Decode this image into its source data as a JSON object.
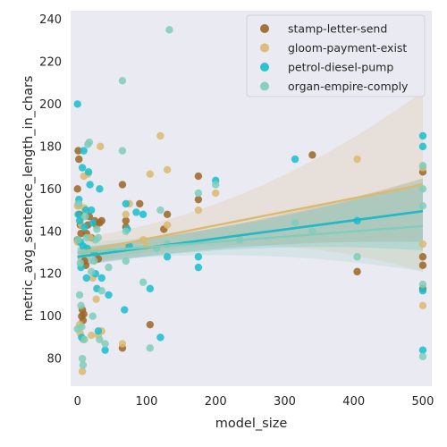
{
  "chart_data": {
    "type": "scatter",
    "xlabel": "model_size",
    "ylabel": "metric_avg_sentence_length_in_chars",
    "xlim": [
      -10,
      513
    ],
    "ylim": [
      67,
      244
    ],
    "xticks": [
      0,
      100,
      200,
      300,
      400,
      500
    ],
    "yticks": [
      80,
      100,
      120,
      140,
      160,
      180,
      200,
      220,
      240
    ],
    "grid": false,
    "legend_position": "top-right",
    "series": [
      {
        "name": "stamp-letter-send",
        "color": "#9c6624",
        "fit": {
          "intercept": 128,
          "slope": 0.043,
          "ci_low_end": 138,
          "ci_high_end": 162
        },
        "points": [
          [
            0,
            136
          ],
          [
            0,
            160
          ],
          [
            1,
            178
          ],
          [
            2,
            174
          ],
          [
            3,
            148
          ],
          [
            4,
            143
          ],
          [
            5,
            139
          ],
          [
            6,
            100
          ],
          [
            7,
            103
          ],
          [
            8,
            98
          ],
          [
            9,
            101
          ],
          [
            10,
            126
          ],
          [
            12,
            124
          ],
          [
            13,
            139
          ],
          [
            15,
            143
          ],
          [
            17,
            147
          ],
          [
            20,
            137
          ],
          [
            25,
            145
          ],
          [
            27,
            143
          ],
          [
            30,
            127
          ],
          [
            32,
            144
          ],
          [
            35,
            145
          ],
          [
            65,
            162
          ],
          [
            65,
            85
          ],
          [
            70,
            142
          ],
          [
            70,
            145
          ],
          [
            90,
            153
          ],
          [
            105,
            96
          ],
          [
            125,
            141
          ],
          [
            130,
            148
          ],
          [
            175,
            166
          ],
          [
            175,
            155
          ],
          [
            340,
            176
          ],
          [
            405,
            121
          ],
          [
            500,
            168
          ],
          [
            500,
            124
          ],
          [
            500,
            128
          ],
          [
            500,
            113
          ]
        ]
      },
      {
        "name": "gloom-payment-exist",
        "color": "#dcb870",
        "fit": {
          "intercept": 130,
          "slope": 0.064,
          "ci_low_end": 124,
          "ci_high_end": 203
        },
        "points": [
          [
            0,
            135
          ],
          [
            0,
            152
          ],
          [
            1,
            153
          ],
          [
            2,
            152
          ],
          [
            3,
            96
          ],
          [
            4,
            92
          ],
          [
            5,
            146
          ],
          [
            6,
            143
          ],
          [
            7,
            74
          ],
          [
            8,
            89
          ],
          [
            9,
            166
          ],
          [
            10,
            151
          ],
          [
            12,
            130
          ],
          [
            15,
            167
          ],
          [
            18,
            137
          ],
          [
            20,
            91
          ],
          [
            22,
            118
          ],
          [
            25,
            130
          ],
          [
            27,
            108
          ],
          [
            30,
            91
          ],
          [
            33,
            180
          ],
          [
            35,
            93
          ],
          [
            65,
            87
          ],
          [
            70,
            148
          ],
          [
            72,
            133
          ],
          [
            75,
            153
          ],
          [
            95,
            136
          ],
          [
            100,
            133
          ],
          [
            105,
            167
          ],
          [
            120,
            185
          ],
          [
            130,
            143
          ],
          [
            130,
            169
          ],
          [
            175,
            150
          ],
          [
            200,
            158
          ],
          [
            405,
            174
          ],
          [
            500,
            105
          ],
          [
            500,
            134
          ],
          [
            500,
            170
          ]
        ]
      },
      {
        "name": "petrol-diesel-pump",
        "color": "#17becf",
        "fit": {
          "intercept": 128,
          "slope": 0.043,
          "ci_low_end": 134,
          "ci_high_end": 160
        },
        "points": [
          [
            0,
            200
          ],
          [
            1,
            148
          ],
          [
            2,
            155
          ],
          [
            3,
            145
          ],
          [
            4,
            135
          ],
          [
            5,
            123
          ],
          [
            6,
            90
          ],
          [
            7,
            170
          ],
          [
            8,
            133
          ],
          [
            9,
            178
          ],
          [
            10,
            142
          ],
          [
            12,
            150
          ],
          [
            13,
            118
          ],
          [
            14,
            132
          ],
          [
            16,
            168
          ],
          [
            18,
            162
          ],
          [
            20,
            150
          ],
          [
            22,
            144
          ],
          [
            24,
            130
          ],
          [
            26,
            120
          ],
          [
            28,
            113
          ],
          [
            30,
            93
          ],
          [
            32,
            160
          ],
          [
            35,
            118
          ],
          [
            40,
            84
          ],
          [
            45,
            110
          ],
          [
            68,
            103
          ],
          [
            70,
            153
          ],
          [
            72,
            141
          ],
          [
            75,
            133
          ],
          [
            85,
            149
          ],
          [
            95,
            148
          ],
          [
            105,
            113
          ],
          [
            120,
            90
          ],
          [
            130,
            128
          ],
          [
            175,
            128
          ],
          [
            175,
            123
          ],
          [
            200,
            164
          ],
          [
            315,
            174
          ],
          [
            405,
            145
          ],
          [
            500,
            84
          ],
          [
            500,
            180
          ],
          [
            500,
            185
          ],
          [
            500,
            112
          ]
        ]
      },
      {
        "name": "organ-empire-comply",
        "color": "#7fcdbb",
        "fit": {
          "intercept": 130,
          "slope": 0.025,
          "ci_low_end": 124,
          "ci_high_end": 162
        },
        "points": [
          [
            0,
            94
          ],
          [
            1,
            136
          ],
          [
            2,
            153
          ],
          [
            3,
            110
          ],
          [
            4,
            125
          ],
          [
            5,
            105
          ],
          [
            6,
            95
          ],
          [
            7,
            80
          ],
          [
            8,
            77
          ],
          [
            9,
            130
          ],
          [
            10,
            89
          ],
          [
            11,
            147
          ],
          [
            13,
            137
          ],
          [
            15,
            181
          ],
          [
            17,
            182
          ],
          [
            20,
            121
          ],
          [
            22,
            100
          ],
          [
            24,
            126
          ],
          [
            26,
            136
          ],
          [
            28,
            141
          ],
          [
            30,
            137
          ],
          [
            32,
            89
          ],
          [
            35,
            112
          ],
          [
            40,
            87
          ],
          [
            45,
            123
          ],
          [
            65,
            211
          ],
          [
            65,
            178
          ],
          [
            70,
            140
          ],
          [
            70,
            126
          ],
          [
            95,
            116
          ],
          [
            105,
            85
          ],
          [
            115,
            132
          ],
          [
            120,
            150
          ],
          [
            130,
            134
          ],
          [
            133,
            235
          ],
          [
            175,
            158
          ],
          [
            200,
            162
          ],
          [
            235,
            136
          ],
          [
            315,
            144
          ],
          [
            340,
            140
          ],
          [
            405,
            128
          ],
          [
            500,
            171
          ],
          [
            500,
            115
          ],
          [
            500,
            81
          ],
          [
            500,
            160
          ],
          [
            500,
            152
          ]
        ]
      }
    ]
  }
}
